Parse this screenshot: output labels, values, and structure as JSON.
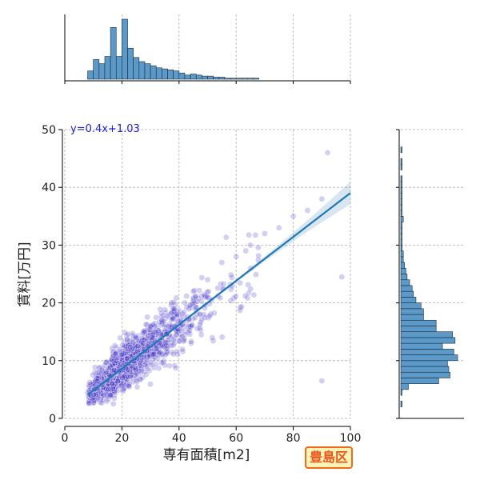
{
  "badge": "豊島区",
  "chart_data": {
    "type": "scatter",
    "xlabel": "専有面積[m2]",
    "ylabel": "賃料[万円]",
    "xlim": [
      0,
      100
    ],
    "ylim": [
      0,
      50
    ],
    "xticks": [
      "0",
      "20",
      "40",
      "60",
      "80",
      "100"
    ],
    "yticks": [
      "0",
      "10",
      "20",
      "30",
      "40",
      "50"
    ],
    "grid": true,
    "regression": {
      "equation": "y=0.4x+1.03",
      "slope": 0.38,
      "intercept": 1.03,
      "x_range": [
        8,
        100
      ],
      "color": "#1f77b4"
    },
    "point_color": "#3a2bc4",
    "hist_color": "#5b9ac8",
    "x_hist": {
      "bin_start": 8,
      "bin_width": 2,
      "counts": [
        8,
        19,
        15,
        22,
        50,
        22,
        58,
        30,
        21,
        17,
        15,
        13,
        11,
        10,
        9,
        8,
        6,
        4,
        5,
        4,
        3,
        3,
        2,
        2,
        1,
        1,
        1,
        1,
        1,
        1
      ]
    },
    "y_hist": {
      "bin_start": 2,
      "bin_width": 1,
      "counts": [
        1,
        0,
        1,
        6,
        30,
        39,
        38,
        37,
        45,
        42,
        33,
        43,
        41,
        28,
        28,
        18,
        18,
        16,
        12,
        10,
        9,
        7,
        5,
        4,
        3,
        2,
        2,
        1,
        1,
        1,
        1,
        1,
        2,
        1,
        1,
        1,
        1,
        1,
        1,
        1,
        0,
        1,
        1,
        0,
        1
      ]
    },
    "sample_points": [
      [
        9.8,
        7.5
      ],
      [
        12,
        8
      ],
      [
        14,
        9.2
      ],
      [
        18,
        10
      ],
      [
        20,
        11
      ],
      [
        22,
        12
      ],
      [
        25,
        14
      ],
      [
        28,
        15
      ],
      [
        30,
        16
      ],
      [
        34,
        17
      ],
      [
        38,
        19
      ],
      [
        42,
        20
      ],
      [
        45,
        22
      ],
      [
        50,
        24
      ],
      [
        55,
        27
      ],
      [
        60,
        28
      ],
      [
        65,
        30
      ],
      [
        70,
        32
      ],
      [
        75,
        33
      ],
      [
        80,
        35
      ],
      [
        85,
        36
      ],
      [
        90,
        38
      ],
      [
        92,
        46
      ],
      [
        97,
        24.5
      ],
      [
        90,
        6.5
      ]
    ]
  }
}
